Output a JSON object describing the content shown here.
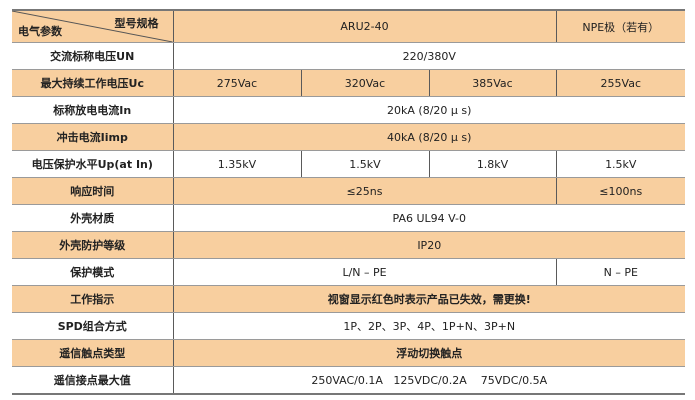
{
  "colors": {
    "accent_row": "#f8cf9f",
    "border": "#9a9a9a"
  },
  "header": {
    "model_label": "型号规格",
    "param_label": "电气参数",
    "model": "ARU2-40",
    "npe": "NPE极（若有）"
  },
  "rows": [
    {
      "label": "交流标称电压UN",
      "values": [
        "220/380V"
      ]
    },
    {
      "label": "最大持续工作电压Uc",
      "values": [
        "275Vac",
        "320Vac",
        "385Vac",
        "255Vac"
      ]
    },
    {
      "label": "标称放电电流In",
      "values": [
        "20kA  (8/20 μ s)"
      ]
    },
    {
      "label": "冲击电流Iimp",
      "values": [
        "40kA  (8/20 μ s)"
      ]
    },
    {
      "label": "电压保护水平Up(at In)",
      "values": [
        "1.35kV",
        "1.5kV",
        "1.8kV",
        "1.5kV"
      ]
    },
    {
      "label": "响应时间",
      "values": [
        "≤25ns",
        "≤100ns"
      ]
    },
    {
      "label": "外壳材质",
      "values": [
        "PA6  UL94 V-0"
      ]
    },
    {
      "label": "外壳防护等级",
      "values": [
        "IP20"
      ]
    },
    {
      "label": "保护模式",
      "values": [
        "L/N – PE",
        "N – PE"
      ]
    },
    {
      "label": "工作指示",
      "values": [
        "视窗显示红色时表示产品已失效，需更换!"
      ]
    },
    {
      "label": "SPD组合方式",
      "values": [
        "1P、2P、3P、4P、1P+N、3P+N"
      ]
    },
    {
      "label": "遥信触点类型",
      "values": [
        "浮动切换触点"
      ]
    },
    {
      "label": "遥信接点最大值",
      "values": [
        "250VAC/0.1A   125VDC/0.2A    75VDC/0.5A"
      ]
    }
  ]
}
